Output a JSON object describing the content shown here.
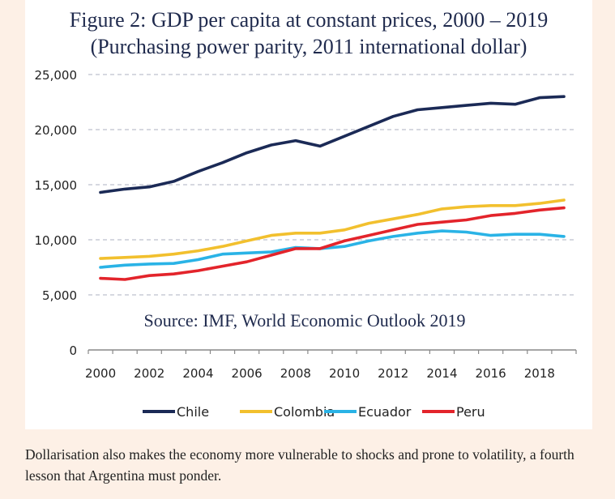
{
  "figure": {
    "title_line1": "Figure 2: GDP per capita at constant prices, 2000 – 2019",
    "title_line2": "(Purchasing power parity, 2011 international dollar)"
  },
  "caption": "Dollarisation also makes the economy more vulnerable to shocks and prone to volatility, a fourth lesson that Argentina must ponder.",
  "chart_data": {
    "type": "line",
    "annotation": "Source: IMF, World Economic Outlook 2019",
    "x": [
      2000,
      2001,
      2002,
      2003,
      2004,
      2005,
      2006,
      2007,
      2008,
      2009,
      2010,
      2011,
      2012,
      2013,
      2014,
      2015,
      2016,
      2017,
      2018,
      2019
    ],
    "xticks": [
      "2000",
      "2002",
      "2004",
      "2006",
      "2008",
      "2010",
      "2012",
      "2014",
      "2016",
      "2018"
    ],
    "ylim": [
      0,
      25000
    ],
    "yticks": [
      "0",
      "5,000",
      "10,000",
      "15,000",
      "20,000",
      "25,000"
    ],
    "ytick_values": [
      0,
      5000,
      10000,
      15000,
      20000,
      25000
    ],
    "grid": "horizontal-dashed",
    "legend_position": "bottom",
    "series": [
      {
        "name": "Chile",
        "color": "#1b2a56",
        "values": [
          14300,
          14600,
          14800,
          15300,
          16200,
          17000,
          17900,
          18600,
          19000,
          18500,
          19400,
          20300,
          21200,
          21800,
          22000,
          22200,
          22400,
          22300,
          22900,
          23000
        ]
      },
      {
        "name": "Colombia",
        "color": "#f2c02e",
        "values": [
          8300,
          8400,
          8500,
          8700,
          9000,
          9400,
          9900,
          10400,
          10600,
          10600,
          10900,
          11500,
          11900,
          12300,
          12800,
          13000,
          13100,
          13100,
          13300,
          13600
        ]
      },
      {
        "name": "Ecuador",
        "color": "#2ab3e6",
        "values": [
          7500,
          7700,
          7800,
          7850,
          8200,
          8700,
          8800,
          8900,
          9300,
          9200,
          9400,
          9900,
          10300,
          10600,
          10800,
          10700,
          10400,
          10500,
          10500,
          10300
        ]
      },
      {
        "name": "Peru",
        "color": "#e3242b",
        "values": [
          6500,
          6400,
          6750,
          6900,
          7200,
          7600,
          8000,
          8600,
          9200,
          9200,
          9900,
          10400,
          10900,
          11400,
          11600,
          11800,
          12200,
          12400,
          12700,
          12900
        ]
      }
    ]
  }
}
